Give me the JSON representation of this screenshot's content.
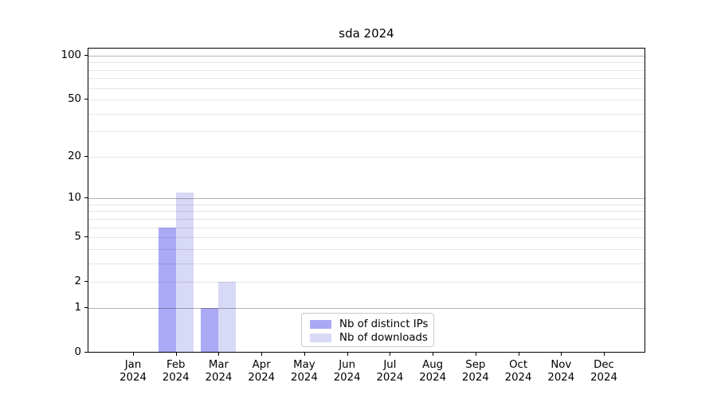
{
  "chart_data": {
    "type": "bar",
    "title": "sda 2024",
    "categories": [
      "Jan",
      "Feb",
      "Mar",
      "Apr",
      "May",
      "Jun",
      "Jul",
      "Aug",
      "Sep",
      "Oct",
      "Nov",
      "Dec"
    ],
    "category_year": "2024",
    "series": [
      {
        "name": "Nb of distinct IPs",
        "color": "#a9a9f5",
        "values": [
          0,
          6,
          1,
          0,
          0,
          0,
          0,
          0,
          0,
          0,
          0,
          0
        ]
      },
      {
        "name": "Nb of downloads",
        "color": "#d8d8f7",
        "values": [
          0,
          11,
          2,
          0,
          0,
          0,
          0,
          0,
          0,
          0,
          0,
          0
        ]
      }
    ],
    "y_axis": {
      "scale": "log1p",
      "tick_labels": [
        "0",
        "1",
        "2",
        "5",
        "10",
        "20",
        "50",
        "100"
      ],
      "ticks": [
        0,
        1,
        2,
        5,
        10,
        20,
        50,
        100
      ],
      "major_gridlines": [
        1,
        10,
        100
      ],
      "minor_gridlines": [
        2,
        3,
        4,
        5,
        6,
        7,
        8,
        9,
        20,
        30,
        40,
        50,
        60,
        70,
        80,
        90
      ],
      "range": [
        0,
        113
      ]
    },
    "legend": {
      "position": "lower-center-inside"
    },
    "grid": true,
    "colors": {
      "major_grid": "rgba(0,0,0,0.30)",
      "minor_grid": "rgba(0,0,0,0.10)",
      "axis": "#000000",
      "background": "#ffffff"
    }
  }
}
